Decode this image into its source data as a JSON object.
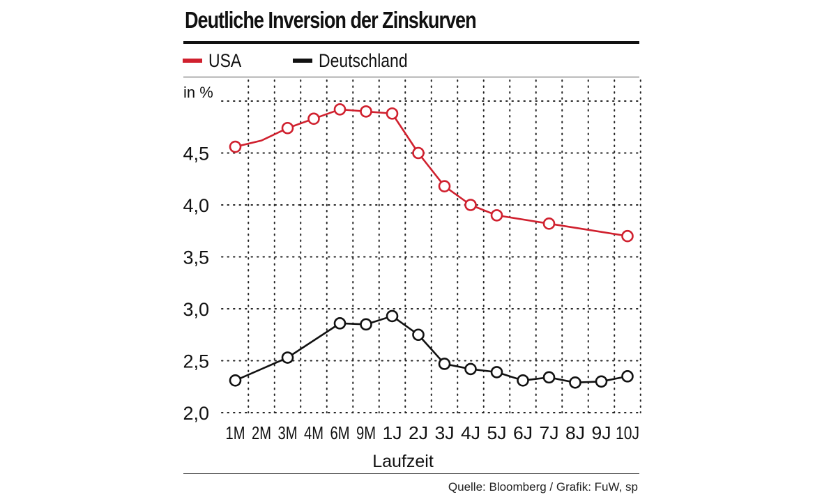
{
  "chart_data": {
    "type": "line",
    "title": "Deutliche Inversion der Zinskurven",
    "ylabel": "in %",
    "xlabel": "Laufzeit",
    "ylim": [
      2.0,
      5.0
    ],
    "yticks": [
      "2,0",
      "2,5",
      "3,0",
      "3,5",
      "4,0",
      "4,5"
    ],
    "ytick_values": [
      2.0,
      2.5,
      3.0,
      3.5,
      4.0,
      4.5
    ],
    "categories": [
      "1M",
      "2M",
      "3M",
      "4M",
      "6M",
      "9M",
      "1J",
      "2J",
      "3J",
      "4J",
      "5J",
      "6J",
      "7J",
      "8J",
      "9J",
      "10J"
    ],
    "series": [
      {
        "name": "USA",
        "color": "#d0202e",
        "points": [
          {
            "x": "1M",
            "y": 4.56
          },
          {
            "x": "3M",
            "y": 4.74
          },
          {
            "x": "4M",
            "y": 4.83
          },
          {
            "x": "6M",
            "y": 4.92
          },
          {
            "x": "9M",
            "y": 4.9
          },
          {
            "x": "1J",
            "y": 4.88
          },
          {
            "x": "2J",
            "y": 4.5
          },
          {
            "x": "3J",
            "y": 4.18
          },
          {
            "x": "4J",
            "y": 4.0
          },
          {
            "x": "5J",
            "y": 3.9
          },
          {
            "x": "7J",
            "y": 3.82
          },
          {
            "x": "10J",
            "y": 3.7
          }
        ],
        "line_through": [
          {
            "x": "2M",
            "y": 4.62
          }
        ]
      },
      {
        "name": "Deutschland",
        "color": "#111111",
        "points": [
          {
            "x": "1M",
            "y": 2.31
          },
          {
            "x": "3M",
            "y": 2.53
          },
          {
            "x": "6M",
            "y": 2.86
          },
          {
            "x": "9M",
            "y": 2.85
          },
          {
            "x": "1J",
            "y": 2.93
          },
          {
            "x": "2J",
            "y": 2.75
          },
          {
            "x": "3J",
            "y": 2.47
          },
          {
            "x": "4J",
            "y": 2.42
          },
          {
            "x": "5J",
            "y": 2.39
          },
          {
            "x": "6J",
            "y": 2.31
          },
          {
            "x": "7J",
            "y": 2.34
          },
          {
            "x": "8J",
            "y": 2.29
          },
          {
            "x": "9J",
            "y": 2.3
          },
          {
            "x": "10J",
            "y": 2.35
          }
        ]
      }
    ],
    "grid": true,
    "legend": "top-left"
  },
  "source": "Quelle: Bloomberg / Grafik: FuW, sp"
}
